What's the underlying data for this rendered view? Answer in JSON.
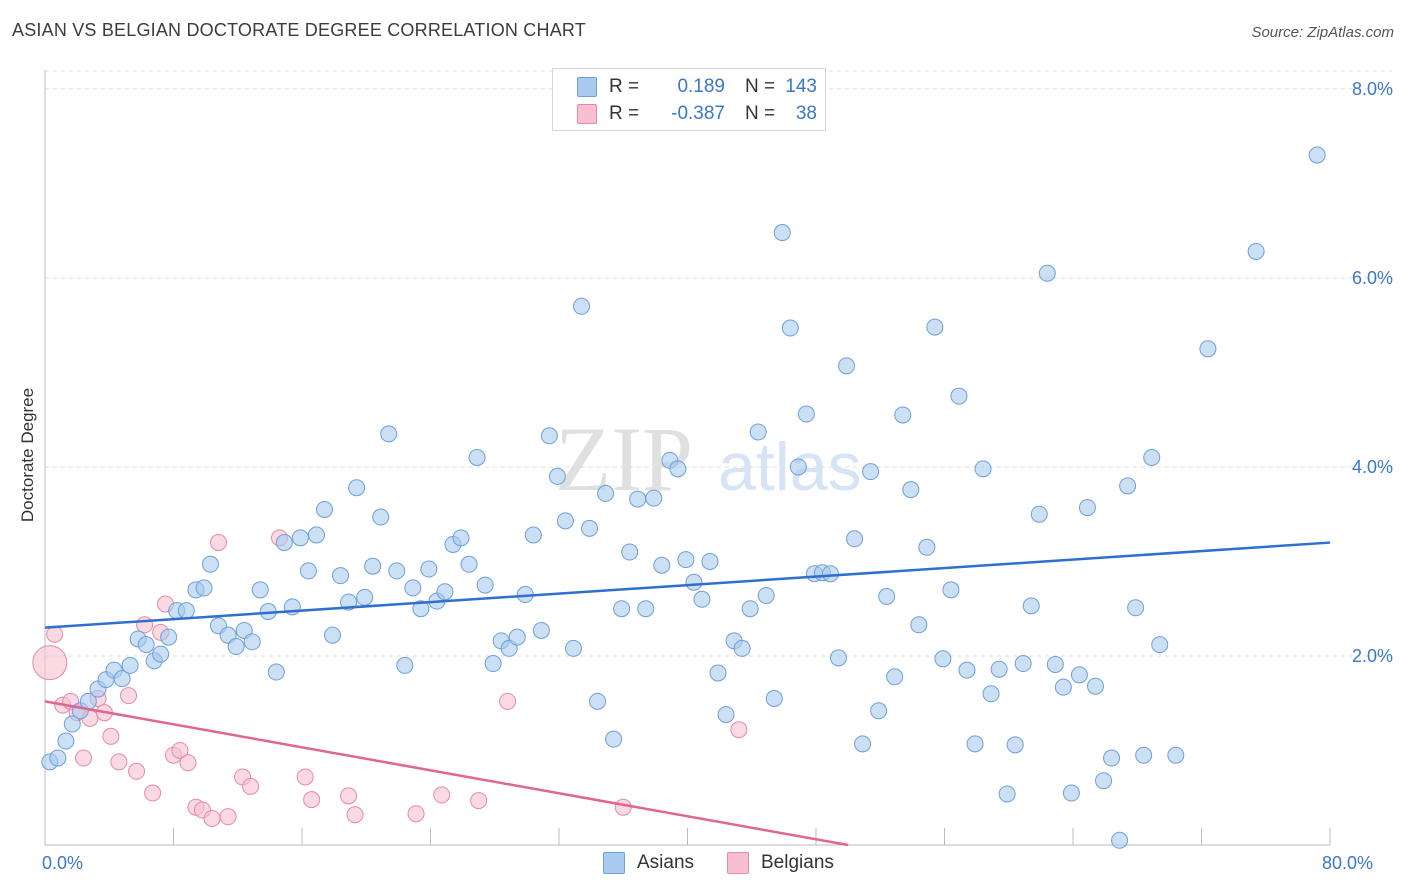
{
  "title": "ASIAN VS BELGIAN DOCTORATE DEGREE CORRELATION CHART",
  "source": "Source: ZipAtlas.com",
  "watermark": {
    "zip": "ZIP",
    "atlas": "atlas"
  },
  "legend_top": {
    "rows": [
      {
        "r_label": "R =",
        "r_value": "0.189",
        "n_label": "N =",
        "n_value": "143"
      },
      {
        "r_label": "R =",
        "r_value": "-0.387",
        "n_label": "N =",
        "n_value": "38"
      }
    ]
  },
  "colors": {
    "asian_fill": "#a9c9ef",
    "asian_stroke": "#6f9fd8",
    "asian_line": "#2f6fcf",
    "belgian_fill": "#f7bfd0",
    "belgian_stroke": "#e58aa8",
    "belgian_line": "#e06690",
    "axis_text": "#3a78c9",
    "grid": "#dcdcdc"
  },
  "chart_data": {
    "type": "scatter",
    "title": "ASIAN VS BELGIAN DOCTORATE DEGREE CORRELATION CHART",
    "xlabel": "",
    "ylabel": "Doctorate Degree",
    "xlim": [
      0,
      80
    ],
    "ylim": [
      0,
      8.2
    ],
    "x_tick_labels": [
      "0.0%",
      "80.0%"
    ],
    "y_ticks": [
      2,
      4,
      6,
      8
    ],
    "y_tick_labels": [
      "2.0%",
      "4.0%",
      "6.0%",
      "8.0%"
    ],
    "legend": [
      "Asians",
      "Belgians"
    ],
    "series": [
      {
        "name": "Asians",
        "R": 0.189,
        "N": 143,
        "trend": {
          "x": [
            0,
            80
          ],
          "y": [
            2.3,
            3.2
          ]
        },
        "points": [
          [
            0.3,
            0.88
          ],
          [
            0.8,
            0.92
          ],
          [
            1.3,
            1.1
          ],
          [
            1.7,
            1.28
          ],
          [
            2.2,
            1.42
          ],
          [
            2.7,
            1.52
          ],
          [
            3.3,
            1.65
          ],
          [
            3.8,
            1.75
          ],
          [
            4.3,
            1.85
          ],
          [
            4.8,
            1.76
          ],
          [
            5.3,
            1.9
          ],
          [
            5.8,
            2.18
          ],
          [
            6.3,
            2.12
          ],
          [
            6.8,
            1.95
          ],
          [
            7.2,
            2.02
          ],
          [
            7.7,
            2.2
          ],
          [
            8.2,
            2.48
          ],
          [
            8.8,
            2.48
          ],
          [
            9.4,
            2.7
          ],
          [
            9.9,
            2.72
          ],
          [
            10.3,
            2.97
          ],
          [
            10.8,
            2.32
          ],
          [
            11.4,
            2.22
          ],
          [
            11.9,
            2.1
          ],
          [
            12.4,
            2.27
          ],
          [
            12.9,
            2.15
          ],
          [
            13.4,
            2.7
          ],
          [
            13.9,
            2.47
          ],
          [
            14.4,
            1.83
          ],
          [
            14.9,
            3.2
          ],
          [
            15.4,
            2.52
          ],
          [
            15.9,
            3.25
          ],
          [
            16.4,
            2.9
          ],
          [
            16.9,
            3.28
          ],
          [
            17.4,
            3.55
          ],
          [
            17.9,
            2.22
          ],
          [
            18.4,
            2.85
          ],
          [
            18.9,
            2.57
          ],
          [
            19.4,
            3.78
          ],
          [
            19.9,
            2.62
          ],
          [
            20.4,
            2.95
          ],
          [
            20.9,
            3.47
          ],
          [
            21.4,
            4.35
          ],
          [
            21.9,
            2.9
          ],
          [
            22.4,
            1.9
          ],
          [
            22.9,
            2.72
          ],
          [
            23.4,
            2.5
          ],
          [
            23.9,
            2.92
          ],
          [
            24.4,
            2.58
          ],
          [
            24.9,
            2.68
          ],
          [
            25.4,
            3.18
          ],
          [
            25.9,
            3.25
          ],
          [
            26.4,
            2.97
          ],
          [
            26.9,
            4.1
          ],
          [
            27.4,
            2.75
          ],
          [
            27.9,
            1.92
          ],
          [
            28.4,
            2.16
          ],
          [
            28.9,
            2.08
          ],
          [
            29.4,
            2.2
          ],
          [
            29.9,
            2.65
          ],
          [
            30.4,
            3.28
          ],
          [
            30.9,
            2.27
          ],
          [
            31.4,
            4.33
          ],
          [
            31.9,
            3.9
          ],
          [
            32.4,
            3.43
          ],
          [
            32.9,
            2.08
          ],
          [
            33.4,
            5.7
          ],
          [
            33.9,
            3.35
          ],
          [
            34.4,
            1.52
          ],
          [
            34.9,
            3.72
          ],
          [
            35.4,
            1.12
          ],
          [
            35.9,
            2.5
          ],
          [
            36.4,
            3.1
          ],
          [
            36.9,
            3.66
          ],
          [
            37.4,
            2.5
          ],
          [
            37.9,
            3.67
          ],
          [
            38.4,
            2.96
          ],
          [
            38.9,
            4.07
          ],
          [
            39.4,
            3.98
          ],
          [
            39.9,
            3.02
          ],
          [
            40.4,
            2.78
          ],
          [
            40.9,
            2.6
          ],
          [
            41.4,
            3.0
          ],
          [
            41.9,
            1.82
          ],
          [
            42.4,
            1.38
          ],
          [
            42.9,
            2.16
          ],
          [
            43.4,
            2.08
          ],
          [
            43.9,
            2.5
          ],
          [
            44.4,
            4.37
          ],
          [
            44.9,
            2.64
          ],
          [
            45.4,
            1.55
          ],
          [
            45.9,
            6.48
          ],
          [
            46.4,
            5.47
          ],
          [
            46.9,
            4.0
          ],
          [
            47.4,
            4.56
          ],
          [
            47.9,
            2.87
          ],
          [
            48.4,
            2.88
          ],
          [
            48.9,
            2.87
          ],
          [
            49.4,
            1.98
          ],
          [
            49.9,
            5.07
          ],
          [
            50.4,
            3.24
          ],
          [
            50.9,
            1.07
          ],
          [
            51.4,
            3.95
          ],
          [
            51.9,
            1.42
          ],
          [
            52.4,
            2.63
          ],
          [
            52.9,
            1.78
          ],
          [
            53.4,
            4.55
          ],
          [
            53.9,
            3.76
          ],
          [
            54.4,
            2.33
          ],
          [
            54.9,
            3.15
          ],
          [
            55.4,
            5.48
          ],
          [
            55.9,
            1.97
          ],
          [
            56.4,
            2.7
          ],
          [
            56.9,
            4.75
          ],
          [
            57.4,
            1.85
          ],
          [
            57.9,
            1.07
          ],
          [
            58.4,
            3.98
          ],
          [
            58.9,
            1.6
          ],
          [
            59.4,
            1.86
          ],
          [
            59.9,
            0.54
          ],
          [
            60.4,
            1.06
          ],
          [
            60.9,
            1.92
          ],
          [
            61.4,
            2.53
          ],
          [
            61.9,
            3.5
          ],
          [
            62.4,
            6.05
          ],
          [
            62.9,
            1.91
          ],
          [
            63.4,
            1.67
          ],
          [
            63.9,
            0.55
          ],
          [
            64.4,
            1.8
          ],
          [
            64.9,
            3.57
          ],
          [
            65.4,
            1.68
          ],
          [
            65.9,
            0.68
          ],
          [
            66.4,
            0.92
          ],
          [
            66.9,
            0.05
          ],
          [
            67.4,
            3.8
          ],
          [
            67.9,
            2.51
          ],
          [
            68.4,
            0.95
          ],
          [
            68.9,
            4.1
          ],
          [
            69.4,
            2.12
          ],
          [
            70.4,
            0.95
          ],
          [
            72.4,
            5.25
          ],
          [
            75.4,
            6.28
          ],
          [
            79.2,
            7.3
          ]
        ]
      },
      {
        "name": "Belgians",
        "R": -0.387,
        "N": 38,
        "trend": {
          "x": [
            0,
            50
          ],
          "y": [
            1.52,
            0.0
          ]
        },
        "points": [
          [
            0.3,
            1.93
          ],
          [
            0.6,
            2.23
          ],
          [
            1.1,
            1.48
          ],
          [
            1.6,
            1.52
          ],
          [
            2.0,
            1.4
          ],
          [
            2.4,
            0.92
          ],
          [
            2.8,
            1.34
          ],
          [
            3.3,
            1.55
          ],
          [
            3.7,
            1.4
          ],
          [
            4.1,
            1.15
          ],
          [
            4.6,
            0.88
          ],
          [
            5.2,
            1.58
          ],
          [
            5.7,
            0.78
          ],
          [
            6.2,
            2.33
          ],
          [
            6.7,
            0.55
          ],
          [
            7.2,
            2.25
          ],
          [
            7.5,
            2.55
          ],
          [
            8.0,
            0.95
          ],
          [
            8.4,
            1.0
          ],
          [
            8.9,
            0.87
          ],
          [
            9.4,
            0.4
          ],
          [
            9.8,
            0.37
          ],
          [
            10.4,
            0.28
          ],
          [
            10.8,
            3.2
          ],
          [
            11.4,
            0.3
          ],
          [
            12.3,
            0.72
          ],
          [
            12.8,
            0.62
          ],
          [
            14.6,
            3.25
          ],
          [
            16.2,
            0.72
          ],
          [
            16.6,
            0.48
          ],
          [
            18.9,
            0.52
          ],
          [
            19.3,
            0.32
          ],
          [
            23.1,
            0.33
          ],
          [
            24.7,
            0.53
          ],
          [
            27.0,
            0.47
          ],
          [
            28.8,
            1.52
          ],
          [
            36.0,
            0.4
          ],
          [
            43.2,
            1.22
          ]
        ]
      }
    ]
  }
}
